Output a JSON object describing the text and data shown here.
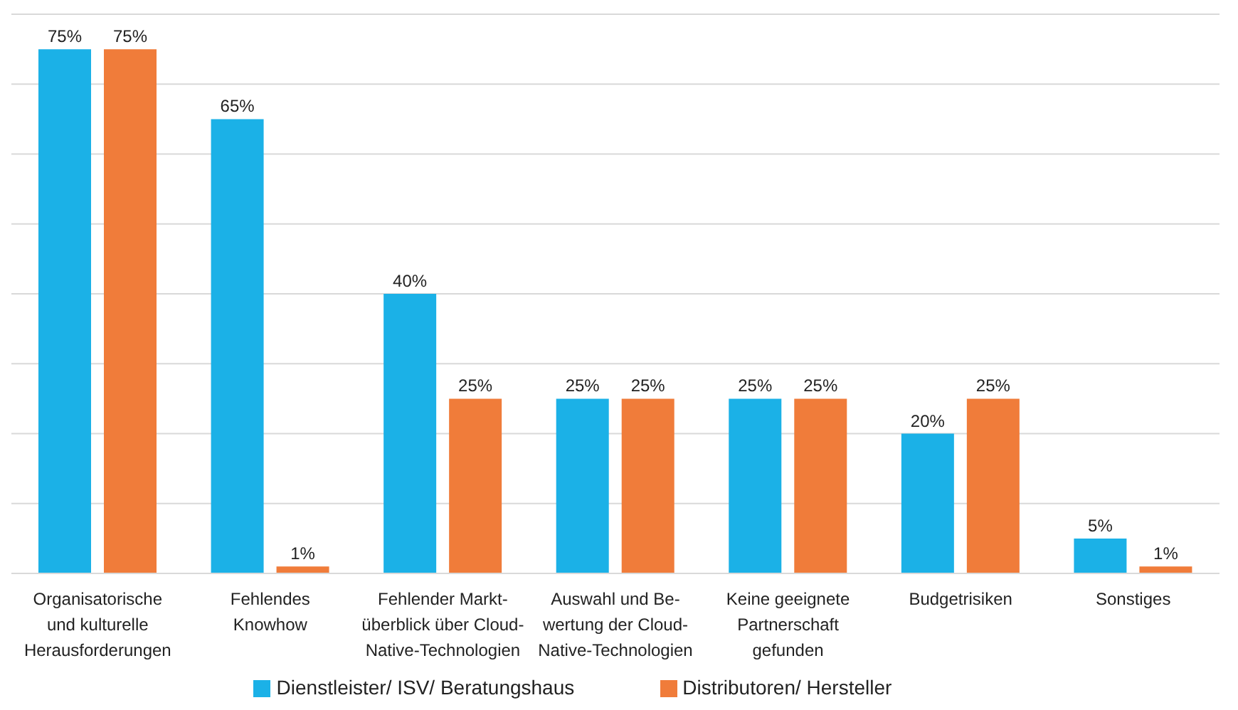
{
  "chart_data": {
    "type": "bar",
    "categories": [
      "Organisatorische\nund kulturelle\nHerausforderungen",
      "Fehlendes\nKnowhow",
      "Fehlender Markt-\nüberblick über Cloud-\nNative-Technologien",
      "Auswahl und Be-\nwertung der Cloud-\nNative-Technologien",
      "Keine geeignete\nPartnerschaft\ngefunden",
      "Budgetrisiken",
      "Sonstiges"
    ],
    "series": [
      {
        "name": "Dienstleister/ ISV/ Beratungshaus",
        "color": "#1bb1e7",
        "values": [
          75,
          65,
          40,
          25,
          25,
          20,
          5
        ],
        "value_labels": [
          "75%",
          "65%",
          "40%",
          "25%",
          "25%",
          "20%",
          "5%"
        ]
      },
      {
        "name": "Distributoren/ Hersteller",
        "color": "#f07c3a",
        "values": [
          75,
          1,
          25,
          25,
          25,
          25,
          1
        ],
        "value_labels": [
          "75%",
          "1%",
          "25%",
          "25%",
          "25%",
          "25%",
          "1%"
        ]
      }
    ],
    "ylim": [
      0,
      80
    ],
    "yticks": [
      {
        "value": 0,
        "label": null
      },
      {
        "value": 10,
        "label": null
      },
      {
        "value": 20,
        "label": null
      },
      {
        "value": 30,
        "label": null
      },
      {
        "value": 40,
        "label": null
      },
      {
        "value": 50,
        "label": null
      },
      {
        "value": 60,
        "label": null
      },
      {
        "value": 70,
        "label": null
      },
      {
        "value": 80,
        "label": null
      }
    ],
    "tick_labels": "x",
    "grid": "y",
    "legend": "bottom"
  }
}
